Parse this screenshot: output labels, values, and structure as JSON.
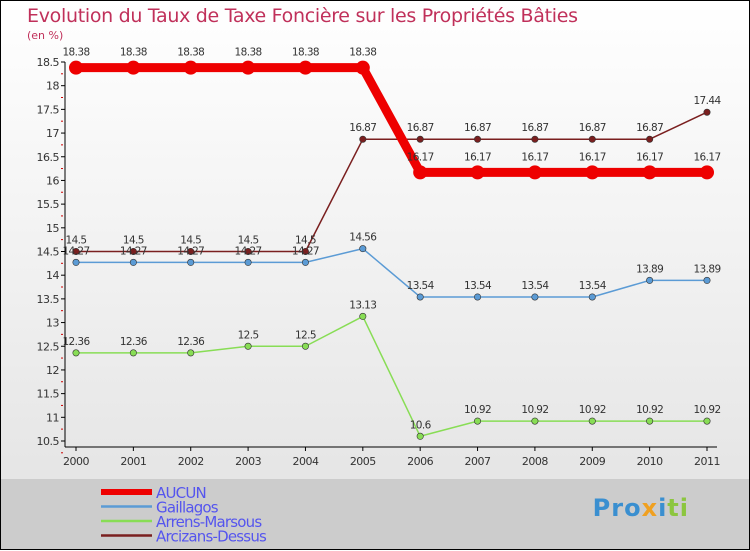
{
  "chart_data": {
    "type": "line",
    "title": "Evolution du Taux de Taxe Foncière sur les Propriétés Bâties",
    "ylabel": "(en %)",
    "xlabel": "",
    "ylim": [
      10.5,
      18.5
    ],
    "yticks": [
      "10.5",
      "11",
      "11.5",
      "12",
      "12.5",
      "13",
      "13.5",
      "14",
      "14.5",
      "15",
      "15.5",
      "16",
      "16.5",
      "17",
      "17.5",
      "18",
      "18.5"
    ],
    "x": [
      "2000",
      "2001",
      "2002",
      "2003",
      "2004",
      "2005",
      "2006",
      "2007",
      "2008",
      "2009",
      "2010",
      "2011"
    ],
    "legend_position": "bottom-left",
    "series": [
      {
        "name": "AUCUN",
        "color": "#ee0000",
        "values": [
          18.38,
          18.38,
          18.38,
          18.38,
          18.38,
          18.38,
          16.17,
          16.17,
          16.17,
          16.17,
          16.17,
          16.17
        ]
      },
      {
        "name": "Gaillagos",
        "color": "#5b9bd5",
        "values": [
          14.27,
          14.27,
          14.27,
          14.27,
          14.27,
          14.56,
          13.54,
          13.54,
          13.54,
          13.54,
          13.89,
          13.89
        ]
      },
      {
        "name": "Arrens-Marsous",
        "color": "#88dd55",
        "values": [
          12.36,
          12.36,
          12.36,
          12.5,
          12.5,
          13.13,
          10.6,
          10.92,
          10.92,
          10.92,
          10.92,
          10.92
        ]
      },
      {
        "name": "Arcizans-Dessus",
        "color": "#7a1f1f",
        "values": [
          14.5,
          14.5,
          14.5,
          14.5,
          14.5,
          16.87,
          16.87,
          16.87,
          16.87,
          16.87,
          16.87,
          17.44
        ]
      }
    ]
  },
  "logo": "Proxiti"
}
